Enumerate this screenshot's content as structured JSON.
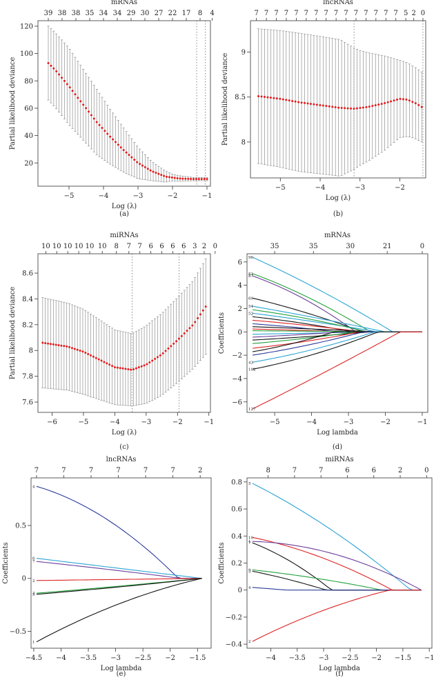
{
  "chart_data": [
    {
      "id": "a",
      "type": "cv-deviance",
      "caption": "(a)",
      "title": "mRNAs",
      "xlabel": "Log (λ)",
      "ylabel": "Partial likelihood deviance",
      "xlim": [
        -5.9,
        -0.9
      ],
      "ylim": [
        3,
        124
      ],
      "xticks": [
        -5,
        -4,
        -3,
        -2,
        -1
      ],
      "yticks": [
        20,
        40,
        60,
        80,
        100,
        120
      ],
      "top_ticks": [
        {
          "x": -5.6,
          "label": "39"
        },
        {
          "x": -5.2,
          "label": "38"
        },
        {
          "x": -4.8,
          "label": "38"
        },
        {
          "x": -4.4,
          "label": "35"
        },
        {
          "x": -4.0,
          "label": "34"
        },
        {
          "x": -3.6,
          "label": "34"
        },
        {
          "x": -3.2,
          "label": "29"
        },
        {
          "x": -2.8,
          "label": "30"
        },
        {
          "x": -2.4,
          "label": "27"
        },
        {
          "x": -2.0,
          "label": "22"
        },
        {
          "x": -1.6,
          "label": "17"
        },
        {
          "x": -1.2,
          "label": "8"
        },
        {
          "x": -0.85,
          "label": "4"
        }
      ],
      "vlines": [
        -1.3,
        -1.05
      ],
      "curve": {
        "x_start": -5.6,
        "x_end": -1.0,
        "n": 60,
        "knots": [
          [
            -5.6,
            93
          ],
          [
            -5.4,
            88
          ],
          [
            -5.0,
            76
          ],
          [
            -4.6,
            63
          ],
          [
            -4.2,
            50
          ],
          [
            -3.8,
            39
          ],
          [
            -3.4,
            29
          ],
          [
            -3.0,
            20
          ],
          [
            -2.6,
            14
          ],
          [
            -2.2,
            10
          ],
          [
            -1.8,
            8.6
          ],
          [
            -1.4,
            8.2
          ],
          [
            -1.0,
            8.2
          ]
        ],
        "err_knots": [
          [
            -5.6,
            27
          ],
          [
            -5.0,
            28
          ],
          [
            -4.2,
            24
          ],
          [
            -3.4,
            16
          ],
          [
            -2.6,
            7
          ],
          [
            -2.0,
            2.5
          ],
          [
            -1.4,
            1.2
          ],
          [
            -1.0,
            1.2
          ]
        ]
      }
    },
    {
      "id": "b",
      "type": "cv-deviance",
      "caption": "(b)",
      "title": "lncRNAs",
      "xlabel": "Log (λ)",
      "ylabel": "Partial likelihood deviance",
      "xlim": [
        -5.75,
        -1.35
      ],
      "ylim": [
        7.6,
        9.35
      ],
      "xticks": [
        -5,
        -4,
        -3,
        -2
      ],
      "yticks": [
        8.0,
        8.5,
        9.0
      ],
      "top_ticks": [
        {
          "x": -5.6,
          "label": "7"
        },
        {
          "x": -5.35,
          "label": "7"
        },
        {
          "x": -5.1,
          "label": "7"
        },
        {
          "x": -4.85,
          "label": "7"
        },
        {
          "x": -4.6,
          "label": "7"
        },
        {
          "x": -4.35,
          "label": "7"
        },
        {
          "x": -4.1,
          "label": "7"
        },
        {
          "x": -3.85,
          "label": "7"
        },
        {
          "x": -3.6,
          "label": "7"
        },
        {
          "x": -3.35,
          "label": "7"
        },
        {
          "x": -3.1,
          "label": "7"
        },
        {
          "x": -2.85,
          "label": "7"
        },
        {
          "x": -2.6,
          "label": "7"
        },
        {
          "x": -2.35,
          "label": "7"
        },
        {
          "x": -2.1,
          "label": "7"
        },
        {
          "x": -1.85,
          "label": "5"
        },
        {
          "x": -1.65,
          "label": "2"
        },
        {
          "x": -1.42,
          "label": "0"
        }
      ],
      "vlines": [
        -3.15,
        -1.42
      ],
      "curve": {
        "x_start": -5.55,
        "x_end": -1.45,
        "n": 54,
        "knots": [
          [
            -5.55,
            8.51
          ],
          [
            -5.0,
            8.48
          ],
          [
            -4.5,
            8.44
          ],
          [
            -4.0,
            8.41
          ],
          [
            -3.5,
            8.38
          ],
          [
            -3.15,
            8.37
          ],
          [
            -2.8,
            8.39
          ],
          [
            -2.4,
            8.43
          ],
          [
            -2.0,
            8.48
          ],
          [
            -1.8,
            8.47
          ],
          [
            -1.6,
            8.43
          ],
          [
            -1.45,
            8.39
          ]
        ],
        "err_knots": [
          [
            -5.55,
            0.75
          ],
          [
            -4.5,
            0.77
          ],
          [
            -3.5,
            0.76
          ],
          [
            -3.0,
            0.64
          ],
          [
            -2.4,
            0.53
          ],
          [
            -2.0,
            0.43
          ],
          [
            -1.7,
            0.4
          ],
          [
            -1.45,
            0.39
          ]
        ]
      }
    },
    {
      "id": "c",
      "type": "cv-deviance",
      "caption": "(c)",
      "title": "miRNAs",
      "xlabel": "Log (λ)",
      "ylabel": "Partial likelihood deviance",
      "xlim": [
        -6.45,
        -0.95
      ],
      "ylim": [
        7.52,
        8.75
      ],
      "xticks": [
        -6,
        -5,
        -4,
        -3,
        -2,
        -1
      ],
      "yticks": [
        7.6,
        7.8,
        8.0,
        8.2,
        8.4,
        8.6
      ],
      "top_ticks": [
        {
          "x": -6.2,
          "label": "10"
        },
        {
          "x": -5.85,
          "label": "10"
        },
        {
          "x": -5.5,
          "label": "10"
        },
        {
          "x": -5.15,
          "label": "10"
        },
        {
          "x": -4.8,
          "label": "10"
        },
        {
          "x": -4.4,
          "label": "10"
        },
        {
          "x": -3.95,
          "label": "8"
        },
        {
          "x": -3.55,
          "label": "7"
        },
        {
          "x": -3.2,
          "label": "7"
        },
        {
          "x": -2.85,
          "label": "6"
        },
        {
          "x": -2.5,
          "label": "6"
        },
        {
          "x": -2.15,
          "label": "6"
        },
        {
          "x": -1.8,
          "label": "6"
        },
        {
          "x": -1.45,
          "label": "3"
        },
        {
          "x": -1.15,
          "label": "2"
        },
        {
          "x": -0.8,
          "label": "0"
        }
      ],
      "vlines": [
        -3.45,
        -1.95
      ],
      "curve": {
        "x_start": -6.3,
        "x_end": -1.1,
        "n": 62,
        "knots": [
          [
            -6.3,
            8.06
          ],
          [
            -5.5,
            8.03
          ],
          [
            -5.0,
            7.99
          ],
          [
            -4.5,
            7.93
          ],
          [
            -4.0,
            7.87
          ],
          [
            -3.45,
            7.85
          ],
          [
            -3.0,
            7.89
          ],
          [
            -2.5,
            7.97
          ],
          [
            -2.0,
            8.08
          ],
          [
            -1.5,
            8.2
          ],
          [
            -1.1,
            8.34
          ]
        ],
        "err_knots": [
          [
            -6.3,
            0.35
          ],
          [
            -5.0,
            0.33
          ],
          [
            -4.0,
            0.29
          ],
          [
            -3.45,
            0.28
          ],
          [
            -2.8,
            0.31
          ],
          [
            -2.0,
            0.33
          ],
          [
            -1.5,
            0.34
          ],
          [
            -1.1,
            0.37
          ]
        ]
      }
    },
    {
      "id": "d",
      "type": "lasso-path",
      "caption": "(d)",
      "title": "mRNAs",
      "xlabel": "Log lambda",
      "ylabel": "Coefficients",
      "xlim": [
        -5.75,
        -0.85
      ],
      "ylim": [
        -6.9,
        6.7
      ],
      "xticks": [
        -5,
        -4,
        -3,
        -2,
        -1
      ],
      "yticks": [
        -6,
        -4,
        -2,
        0,
        2,
        4,
        6
      ],
      "top_ticks": [
        {
          "x": -5.0,
          "label": "35"
        },
        {
          "x": -3.95,
          "label": "35"
        },
        {
          "x": -2.95,
          "label": "30"
        },
        {
          "x": -1.95,
          "label": "21"
        },
        {
          "x": -1.0,
          "label": "0"
        }
      ],
      "x_from": -5.6,
      "x_to": -1.0,
      "series": [
        {
          "name": "96",
          "start": 6.4,
          "zero_at": -1.8,
          "curve": 0.15,
          "color": "#2aa3d4"
        },
        {
          "name": "81",
          "start": 5.0,
          "zero_at": -2.4,
          "curve": 0.25,
          "color": "#22a03a"
        },
        {
          "name": "87",
          "start": 4.8,
          "zero_at": -2.8,
          "curve": 0.35,
          "color": "#6a3d9a"
        },
        {
          "name": "69",
          "start": 2.9,
          "zero_at": -2.6,
          "curve": 0.2,
          "color": "#111111"
        },
        {
          "name": "54",
          "start": 2.2,
          "zero_at": -2.0,
          "curve": 0.1,
          "color": "#2aa3d4"
        },
        {
          "name": "52",
          "start": 1.6,
          "zero_at": -2.2,
          "curve": 0.15,
          "color": "#2aa3d4"
        },
        {
          "name": "",
          "start": 1.9,
          "zero_at": -2.5,
          "curve": 0.3,
          "color": "#22a03a"
        },
        {
          "name": "",
          "start": 1.3,
          "zero_at": -2.9,
          "curve": 0.3,
          "color": "#111111"
        },
        {
          "name": "",
          "start": 1.0,
          "zero_at": -2.6,
          "curve": 0.2,
          "color": "#dd2222"
        },
        {
          "name": "",
          "start": 0.7,
          "zero_at": -3.3,
          "curve": 0.25,
          "color": "#2a3a9a"
        },
        {
          "name": "",
          "start": 0.45,
          "zero_at": -2.2,
          "curve": 0.1,
          "color": "#111111"
        },
        {
          "name": "",
          "start": 0.25,
          "zero_at": -3.0,
          "curve": 0.1,
          "color": "#dd2222"
        },
        {
          "name": "",
          "start": 0.1,
          "zero_at": -2.0,
          "curve": 0.1,
          "color": "#22a03a"
        },
        {
          "name": "",
          "start": -0.2,
          "zero_at": -2.5,
          "curve": 0.1,
          "color": "#2aa3d4"
        },
        {
          "name": "",
          "start": -0.45,
          "zero_at": -3.2,
          "curve": 0.2,
          "color": "#6a3d9a"
        },
        {
          "name": "",
          "start": -0.7,
          "zero_at": -2.4,
          "curve": 0.2,
          "color": "#111111"
        },
        {
          "name": "",
          "start": -1.0,
          "zero_at": -2.8,
          "curve": 0.25,
          "color": "#22a03a"
        },
        {
          "name": "",
          "start": -1.4,
          "zero_at": -2.7,
          "curve": 0.3,
          "color": "#dd2222"
        },
        {
          "name": "",
          "start": -1.7,
          "zero_at": -3.4,
          "curve": 0.3,
          "color": "#111111"
        },
        {
          "name": "",
          "start": -2.0,
          "zero_at": -2.6,
          "curve": 0.25,
          "color": "#2a3a9a"
        },
        {
          "name": "43",
          "start": -2.6,
          "zero_at": -2.3,
          "curve": 0.3,
          "color": "#2aa3d4"
        },
        {
          "name": "102",
          "start": -3.2,
          "zero_at": -2.2,
          "curve": 0.35,
          "color": "#111111"
        },
        {
          "name": "127",
          "start": -6.6,
          "zero_at": -1.6,
          "curve": 0.05,
          "color": "#dd2222"
        }
      ]
    },
    {
      "id": "e",
      "type": "lasso-path",
      "caption": "(e)",
      "title": "lncRNAs",
      "xlabel": "Log lambda",
      "ylabel": "Coefficients",
      "xlim": [
        -4.55,
        -1.25
      ],
      "ylim": [
        -0.66,
        0.95
      ],
      "xticks": [
        -4.5,
        -4.0,
        -3.5,
        -3.0,
        -2.5,
        -2.0,
        -1.5
      ],
      "yticks": [
        -0.5,
        0.0,
        0.5
      ],
      "top_ticks": [
        {
          "x": -4.45,
          "label": "7"
        },
        {
          "x": -3.95,
          "label": "7"
        },
        {
          "x": -3.45,
          "label": "7"
        },
        {
          "x": -2.95,
          "label": "7"
        },
        {
          "x": -2.45,
          "label": "7"
        },
        {
          "x": -1.95,
          "label": "7"
        },
        {
          "x": -1.45,
          "label": "2"
        }
      ],
      "x_from": -4.45,
      "x_to": -1.42,
      "series": [
        {
          "name": "4",
          "start": 0.87,
          "zero_at": -1.85,
          "curve": 0.55,
          "color": "#2a3a9a"
        },
        {
          "name": "6",
          "start": 0.19,
          "zero_at": -1.42,
          "curve": 0.0,
          "color": "#2aa3d4"
        },
        {
          "name": "7",
          "start": 0.16,
          "zero_at": -1.8,
          "curve": 0.1,
          "color": "#6a3d9a"
        },
        {
          "name": "2",
          "start": -0.02,
          "zero_at": -1.42,
          "curve": 0.0,
          "color": "#dd2222"
        },
        {
          "name": "3",
          "start": -0.14,
          "zero_at": -1.42,
          "curve": 0.1,
          "color": "#22a03a"
        },
        {
          "name": "5",
          "start": -0.15,
          "zero_at": -1.42,
          "curve": 0.15,
          "color": "#111111"
        },
        {
          "name": "1",
          "start": -0.6,
          "zero_at": -1.42,
          "curve": -0.4,
          "color": "#111111"
        }
      ]
    },
    {
      "id": "f",
      "type": "lasso-path",
      "caption": "(f)",
      "title": "miRNAs",
      "xlabel": "Log lambda",
      "ylabel": "Coefficients",
      "xlim": [
        -4.45,
        -0.95
      ],
      "ylim": [
        -0.43,
        0.83
      ],
      "xticks": [
        -4.0,
        -3.5,
        -3.0,
        -2.5,
        -2.0,
        -1.5,
        -1.0
      ],
      "yticks": [
        -0.4,
        -0.2,
        0.0,
        0.2,
        0.4,
        0.6,
        0.8
      ],
      "top_ticks": [
        {
          "x": -4.05,
          "label": "8"
        },
        {
          "x": -3.55,
          "label": "7"
        },
        {
          "x": -3.05,
          "label": "7"
        },
        {
          "x": -2.55,
          "label": "6"
        },
        {
          "x": -2.05,
          "label": "6"
        },
        {
          "x": -1.55,
          "label": "2"
        },
        {
          "x": -1.05,
          "label": "0"
        }
      ],
      "x_from": -4.35,
      "x_to": -1.15,
      "series": [
        {
          "name": "5",
          "start": 0.79,
          "zero_at": -1.35,
          "curve": 0.25,
          "color": "#2aa3d4"
        },
        {
          "name": "10",
          "start": 0.39,
          "zero_at": -1.7,
          "curve": 0.45,
          "color": "#dd2222"
        },
        {
          "name": "1",
          "start": 0.36,
          "zero_at": -1.15,
          "curve": 0.9,
          "color": "#6a3d9a"
        },
        {
          "name": "7",
          "start": 0.35,
          "zero_at": -2.85,
          "curve": 0.35,
          "color": "#111111"
        },
        {
          "name": "9",
          "start": 0.15,
          "zero_at": -1.9,
          "curve": 0.3,
          "color": "#22a03a"
        },
        {
          "name": "3",
          "start": 0.14,
          "zero_at": -2.95,
          "curve": 0.2,
          "color": "#111111"
        },
        {
          "name": "4",
          "start": 0.02,
          "zero_at": -3.7,
          "curve": 0.0,
          "color": "#2a3a9a"
        },
        {
          "name": "2",
          "start": -0.38,
          "zero_at": -1.75,
          "curve": -0.35,
          "color": "#dd2222"
        }
      ]
    }
  ]
}
